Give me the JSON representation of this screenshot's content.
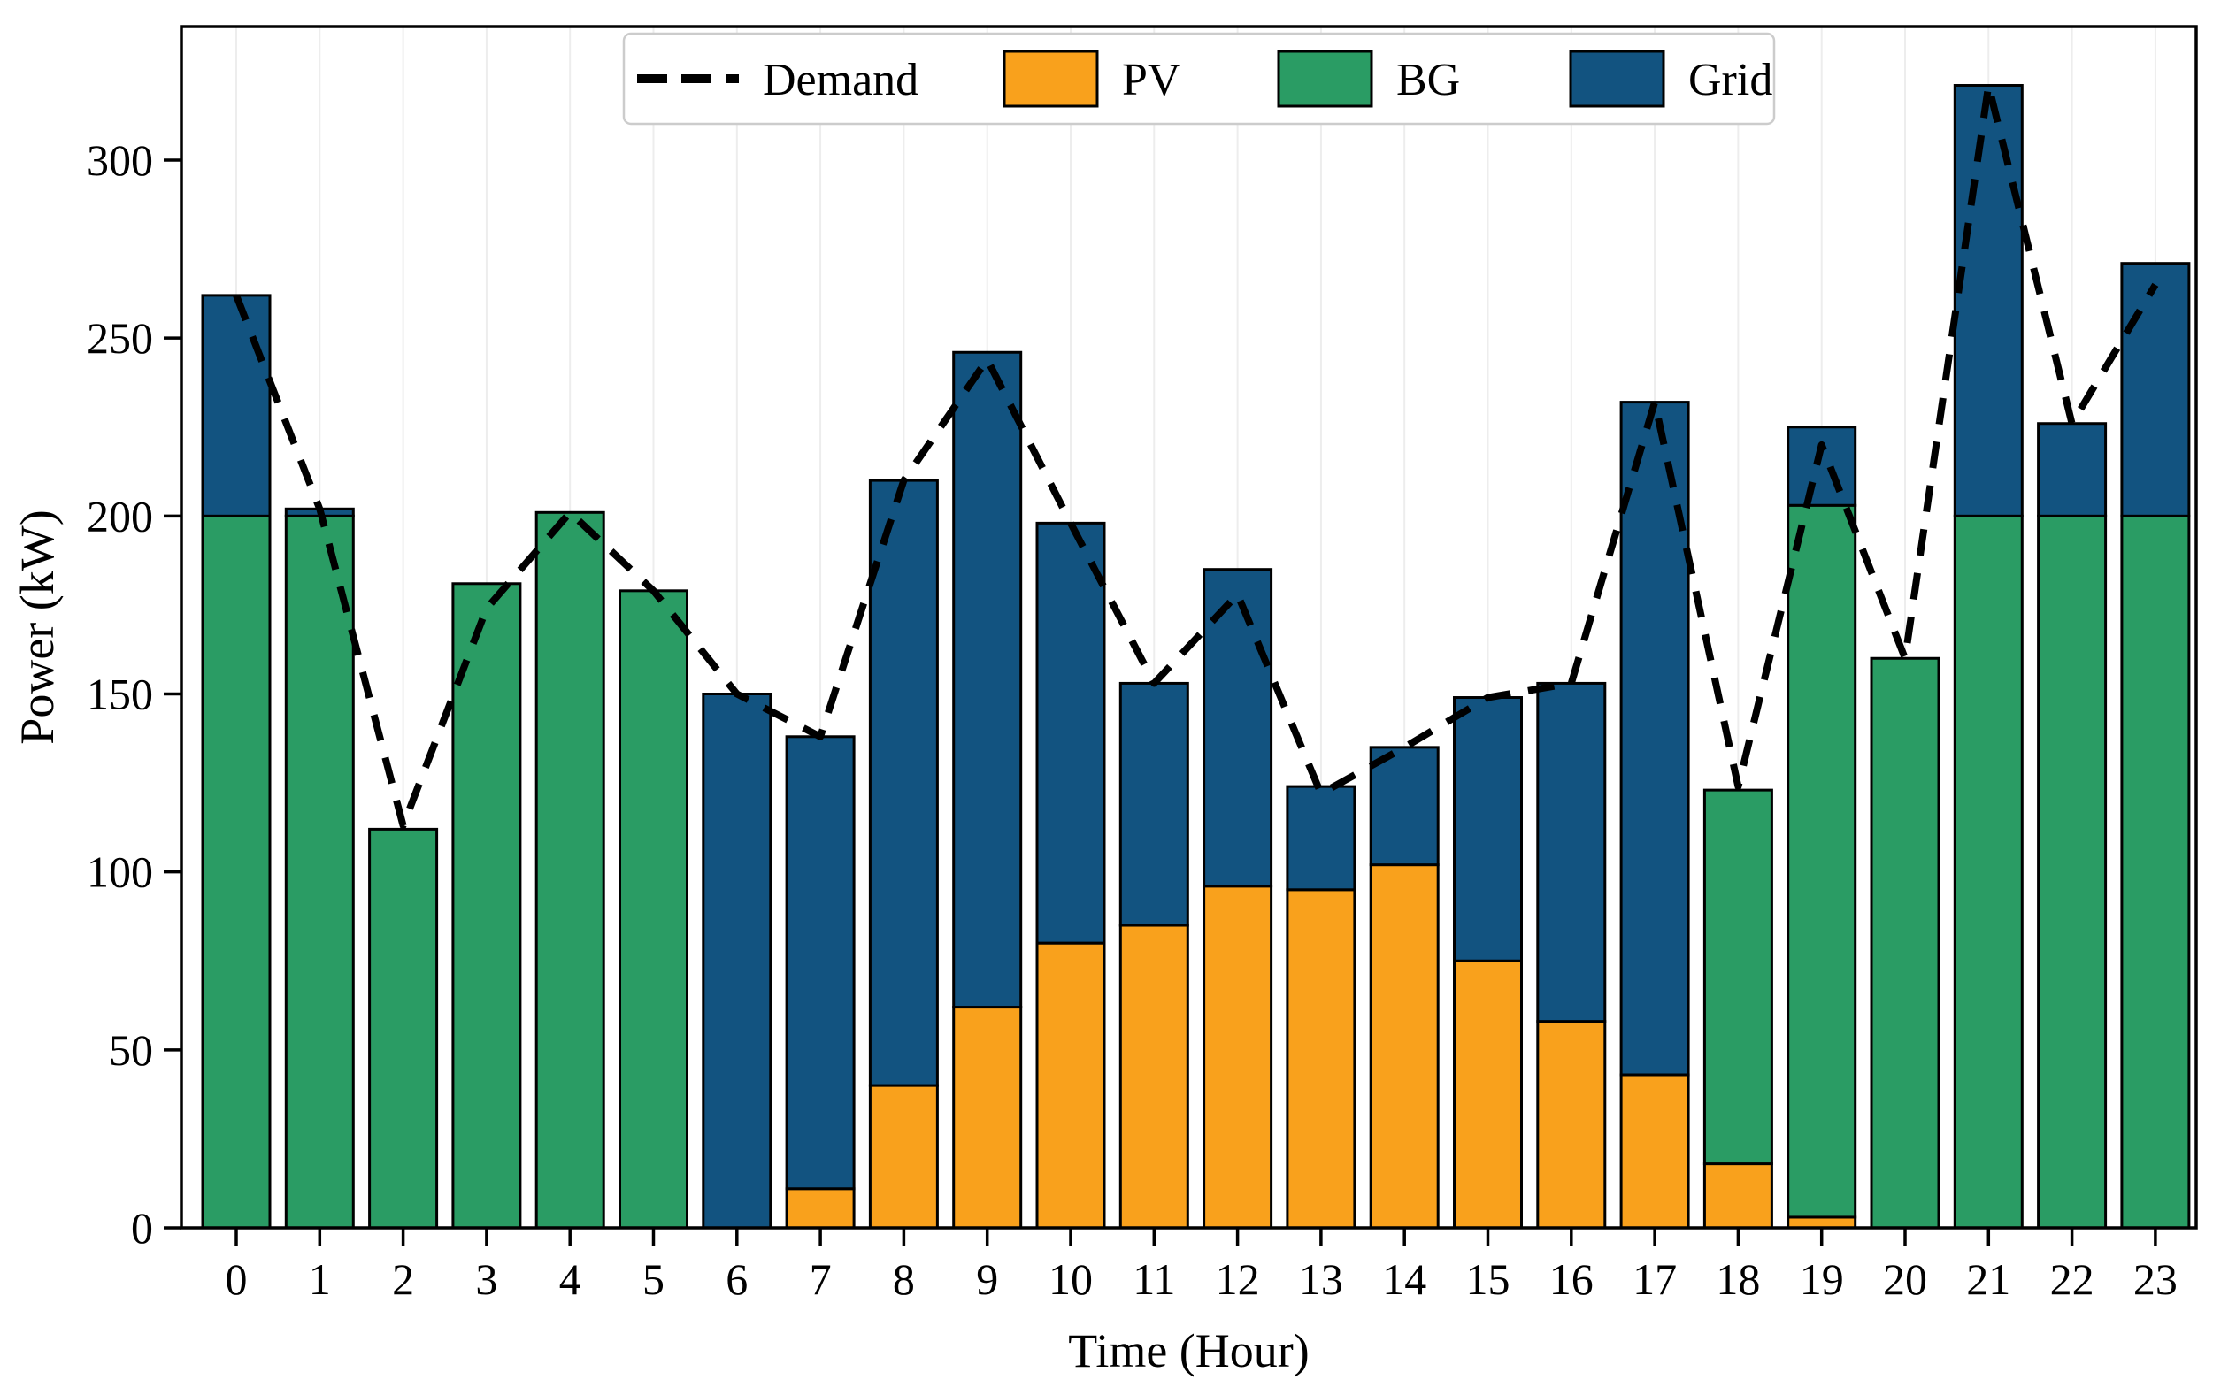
{
  "figure": {
    "xlabel": "Time (Hour)",
    "ylabel": "Power (kW)"
  },
  "legend": {
    "items": [
      {
        "key": "demand",
        "label": "Demand",
        "swatch": "dashed-line"
      },
      {
        "key": "pv",
        "label": "PV",
        "swatch": "patch"
      },
      {
        "key": "bg",
        "label": "BG",
        "swatch": "patch"
      },
      {
        "key": "grid",
        "label": "Grid",
        "swatch": "patch"
      }
    ]
  },
  "colors": {
    "pv": "#F9A11C",
    "bg": "#2A9C64",
    "grid": "#125380",
    "demand": "#000000",
    "bar_edge": "#000000",
    "gridline": "#ededed",
    "axis": "#000000",
    "legend_border": "#cccccc"
  },
  "chart_data": {
    "type": "bar",
    "stacked": true,
    "title": "",
    "xlabel": "Time (Hour)",
    "ylabel": "Power (kW)",
    "x": [
      0,
      1,
      2,
      3,
      4,
      5,
      6,
      7,
      8,
      9,
      10,
      11,
      12,
      13,
      14,
      15,
      16,
      17,
      18,
      19,
      20,
      21,
      22,
      23
    ],
    "xtick_labels": [
      "0",
      "1",
      "2",
      "3",
      "4",
      "5",
      "6",
      "7",
      "8",
      "9",
      "10",
      "11",
      "12",
      "13",
      "14",
      "15",
      "16",
      "17",
      "18",
      "19",
      "20",
      "21",
      "22",
      "23"
    ],
    "series": [
      {
        "name": "PV",
        "type": "bar-stack",
        "color_key": "pv",
        "values": [
          0,
          0,
          0,
          0,
          0,
          0,
          0,
          11,
          40,
          62,
          80,
          85,
          96,
          95,
          102,
          75,
          58,
          43,
          18,
          3,
          0,
          0,
          0,
          0
        ]
      },
      {
        "name": "BG",
        "type": "bar-stack",
        "color_key": "bg",
        "values": [
          200,
          200,
          112,
          181,
          201,
          179,
          0,
          0,
          0,
          0,
          0,
          0,
          0,
          0,
          0,
          0,
          0,
          0,
          105,
          200,
          160,
          200,
          200,
          200
        ]
      },
      {
        "name": "Grid",
        "type": "bar-stack",
        "color_key": "grid",
        "values": [
          62,
          2,
          0,
          0,
          0,
          0,
          150,
          127,
          170,
          184,
          118,
          68,
          89,
          29,
          33,
          74,
          95,
          189,
          0,
          22,
          0,
          121,
          26,
          71
        ]
      }
    ],
    "bar_totals": [
      262,
      202,
      112,
      181,
      201,
      179,
      150,
      138,
      210,
      246,
      198,
      153,
      185,
      124,
      135,
      149,
      153,
      232,
      123,
      225,
      160,
      321,
      226,
      271
    ],
    "demand_line": {
      "name": "Demand",
      "type": "line-dashed",
      "color_key": "demand",
      "values": [
        262,
        202,
        113,
        174,
        201,
        179,
        150,
        138,
        210,
        244,
        198,
        153,
        178,
        122,
        135,
        149,
        153,
        232,
        124,
        220,
        160,
        321,
        226,
        265
      ]
    },
    "yticks": [
      0,
      50,
      100,
      150,
      200,
      250,
      300
    ],
    "ylim": [
      0,
      337.5
    ],
    "grid": "faint-vertical",
    "legend_position": "top-center"
  }
}
